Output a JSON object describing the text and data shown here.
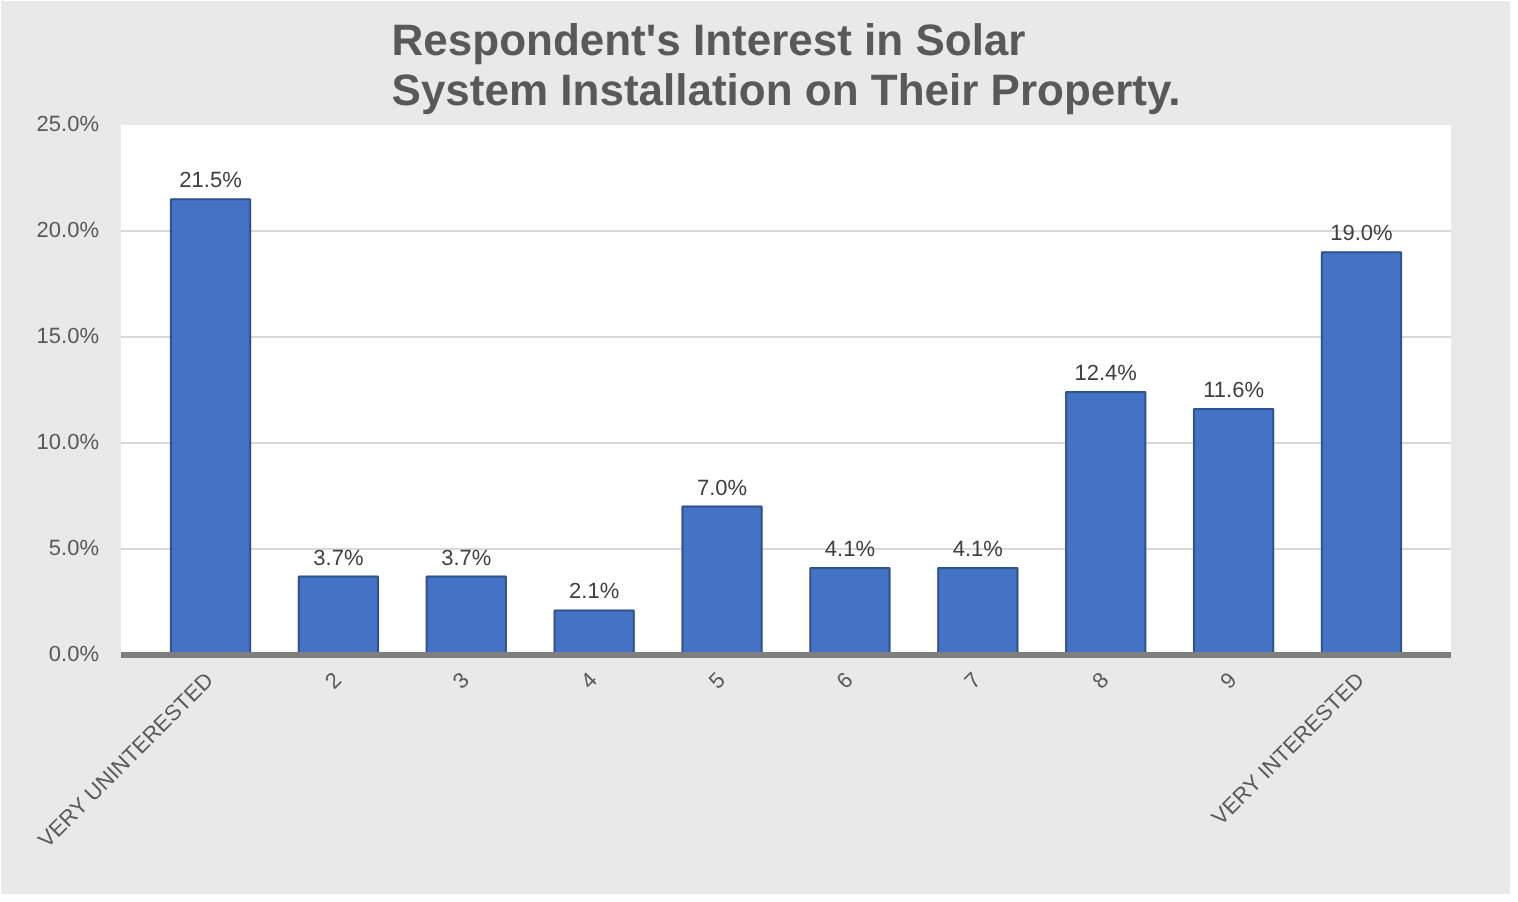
{
  "chart_data": {
    "type": "bar",
    "title": "Respondent's Interest in Solar System Installation on Their Property.",
    "categories": [
      "VERY UNINTERESTED",
      "2",
      "3",
      "4",
      "5",
      "6",
      "7",
      "8",
      "9",
      "VERY INTERESTED"
    ],
    "values": [
      21.5,
      3.7,
      3.7,
      2.1,
      7.0,
      4.1,
      4.1,
      12.4,
      11.6,
      19.0
    ],
    "value_labels": [
      "21.5%",
      "3.7%",
      "3.7%",
      "2.1%",
      "7.0%",
      "4.1%",
      "4.1%",
      "12.4%",
      "11.6%",
      "19.0%"
    ],
    "color": "#4472c4",
    "ylim": [
      0,
      25
    ],
    "yticks": [
      {
        "value": 0,
        "label": "0.0%"
      },
      {
        "value": 5,
        "label": "5.0%"
      },
      {
        "value": 10,
        "label": "10.0%"
      },
      {
        "value": 15,
        "label": "15.0%"
      },
      {
        "value": 20,
        "label": "20.0%"
      },
      {
        "value": 25,
        "label": "25.0%"
      }
    ],
    "grid": "y"
  }
}
